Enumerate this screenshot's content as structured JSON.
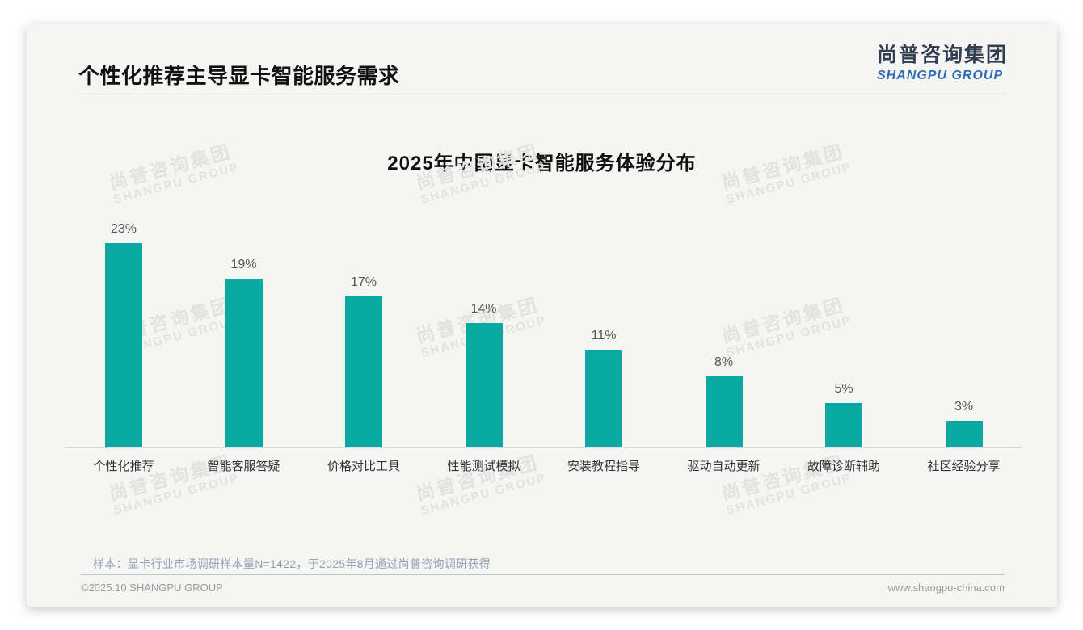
{
  "page": {
    "title": "个性化推荐主导显卡智能服务需求"
  },
  "logo": {
    "cn": "尚普咨询集团",
    "en": "SHANGPU GROUP",
    "cn_color": "#333e50",
    "en_color": "#2d6db8"
  },
  "watermark": {
    "cn": "尚普咨询集团",
    "en": "SHANGPU GROUP"
  },
  "chart_data": {
    "type": "bar",
    "title": "2025年中国显卡智能服务体验分布",
    "categories": [
      "个性化推荐",
      "智能客服答疑",
      "价格对比工具",
      "性能测试模拟",
      "安装教程指导",
      "驱动自动更新",
      "故障诊断辅助",
      "社区经验分享"
    ],
    "values": [
      23,
      19,
      17,
      14,
      11,
      8,
      5,
      3
    ],
    "value_labels": [
      "23%",
      "19%",
      "17%",
      "14%",
      "11%",
      "8%",
      "5%",
      "3%"
    ],
    "unit": "%",
    "xlabel": "",
    "ylabel": "",
    "ylim": [
      0,
      25
    ],
    "grid": false,
    "legend": "none",
    "bar_color": "#0aa9a2"
  },
  "footer": {
    "note": "样本：显卡行业市场调研样本量N=1422，于2025年8月通过尚普咨询调研获得",
    "copyright": "©2025.10 SHANGPU GROUP",
    "website": "www.shangpu-china.com"
  }
}
